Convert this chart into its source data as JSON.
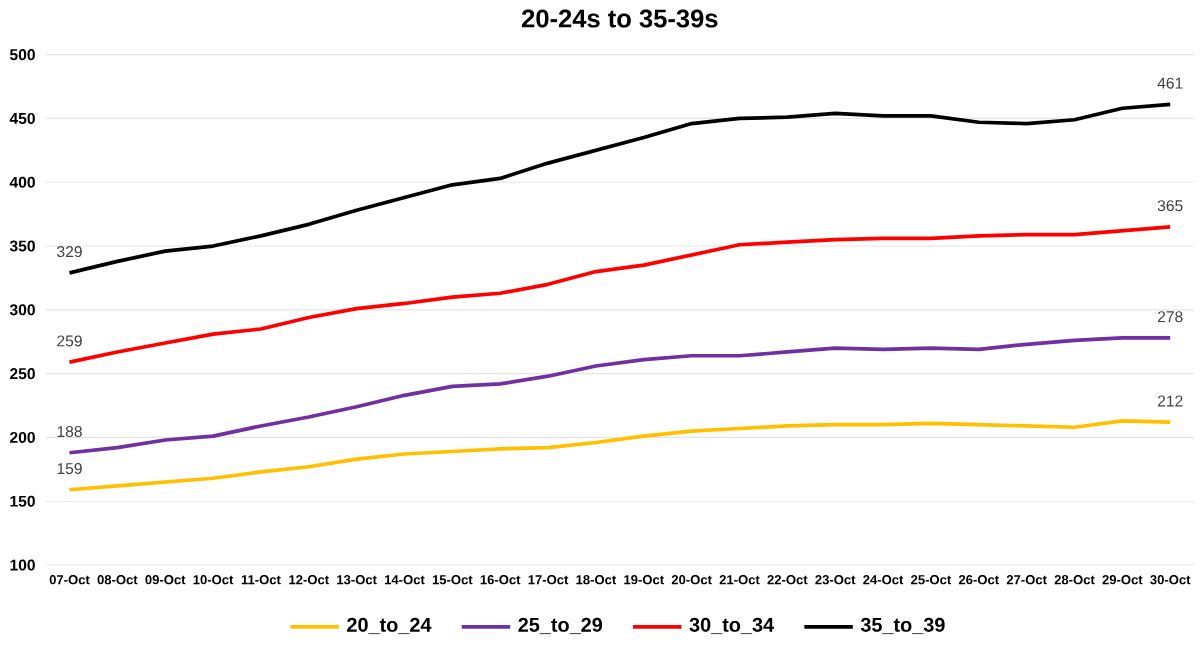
{
  "chart_data": {
    "type": "line",
    "title": "20-24s to 35-39s",
    "categories": [
      "07-Oct",
      "08-Oct",
      "09-Oct",
      "10-Oct",
      "11-Oct",
      "12-Oct",
      "13-Oct",
      "14-Oct",
      "15-Oct",
      "16-Oct",
      "17-Oct",
      "18-Oct",
      "19-Oct",
      "20-Oct",
      "21-Oct",
      "22-Oct",
      "23-Oct",
      "24-Oct",
      "25-Oct",
      "26-Oct",
      "27-Oct",
      "28-Oct",
      "29-Oct",
      "30-Oct"
    ],
    "series": [
      {
        "name": "20_to_24",
        "color": "#ffc000",
        "values": [
          159,
          162,
          165,
          168,
          173,
          177,
          183,
          187,
          189,
          191,
          192,
          196,
          201,
          205,
          207,
          209,
          210,
          210,
          211,
          210,
          209,
          208,
          213,
          212
        ],
        "value_labels": [
          "159",
          null,
          null,
          null,
          null,
          null,
          null,
          null,
          null,
          null,
          null,
          null,
          null,
          null,
          null,
          null,
          null,
          null,
          null,
          null,
          null,
          null,
          null,
          "212"
        ]
      },
      {
        "name": "25_to_29",
        "color": "#7030a0",
        "values": [
          188,
          192,
          198,
          201,
          209,
          216,
          224,
          233,
          240,
          242,
          248,
          256,
          261,
          264,
          264,
          267,
          270,
          269,
          270,
          269,
          273,
          276,
          278,
          278
        ],
        "value_labels": [
          "188",
          null,
          null,
          null,
          null,
          null,
          null,
          null,
          null,
          null,
          null,
          null,
          null,
          null,
          null,
          null,
          null,
          null,
          null,
          null,
          null,
          null,
          null,
          "278"
        ]
      },
      {
        "name": "30_to_34",
        "color": "#ff0000",
        "values": [
          259,
          267,
          274,
          281,
          285,
          294,
          301,
          305,
          310,
          313,
          320,
          330,
          335,
          343,
          351,
          353,
          355,
          356,
          356,
          358,
          359,
          359,
          362,
          365
        ],
        "value_labels": [
          "259",
          null,
          null,
          null,
          null,
          null,
          null,
          null,
          null,
          null,
          null,
          null,
          null,
          null,
          null,
          null,
          null,
          null,
          null,
          null,
          null,
          null,
          null,
          "365"
        ]
      },
      {
        "name": "35_to_39",
        "color": "#000000",
        "values": [
          329,
          338,
          346,
          350,
          358,
          367,
          378,
          388,
          398,
          403,
          415,
          425,
          435,
          446,
          450,
          451,
          454,
          452,
          452,
          447,
          446,
          449,
          458,
          461
        ],
        "value_labels": [
          "329",
          null,
          null,
          null,
          null,
          null,
          null,
          null,
          null,
          null,
          null,
          null,
          null,
          null,
          null,
          null,
          null,
          null,
          null,
          null,
          null,
          null,
          null,
          "461"
        ]
      }
    ],
    "ylim": [
      100,
      500
    ],
    "yticks": [
      100,
      150,
      200,
      250,
      300,
      350,
      400,
      450,
      500
    ],
    "grid": "y",
    "legend": "bottom",
    "marker": "none",
    "line_style": "solid"
  }
}
